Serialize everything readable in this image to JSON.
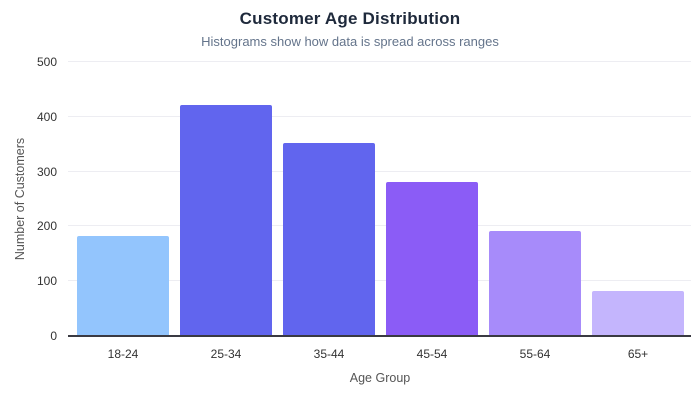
{
  "header": {
    "title": "Customer Age Distribution",
    "subtitle": "Histograms show how data is spread across ranges"
  },
  "chart_data": {
    "type": "bar",
    "title": "Customer Age Distribution",
    "subtitle": "Histograms show how data is spread across ranges",
    "categories": [
      "18-24",
      "25-34",
      "35-44",
      "45-54",
      "55-64",
      "65+"
    ],
    "values": [
      180,
      420,
      350,
      280,
      190,
      80
    ],
    "bar_colors": [
      "#93c5fd",
      "#6165ee",
      "#6165ee",
      "#8b5cf6",
      "#a78bfa",
      "#c4b5fd"
    ],
    "xlabel": "Age Group",
    "ylabel": "Number of Customers",
    "ylim": [
      0,
      500
    ],
    "yticks": [
      0,
      100,
      200,
      300,
      400,
      500
    ],
    "grid": "horizontal",
    "legend": "none"
  },
  "palette": {
    "background": "#ffffff",
    "title": "#1e293b",
    "subtitle": "#64748b",
    "axis_title": "#555555",
    "tick_label": "#333333",
    "gridline": "#ededf2",
    "axis_line": "#3a3a42"
  }
}
